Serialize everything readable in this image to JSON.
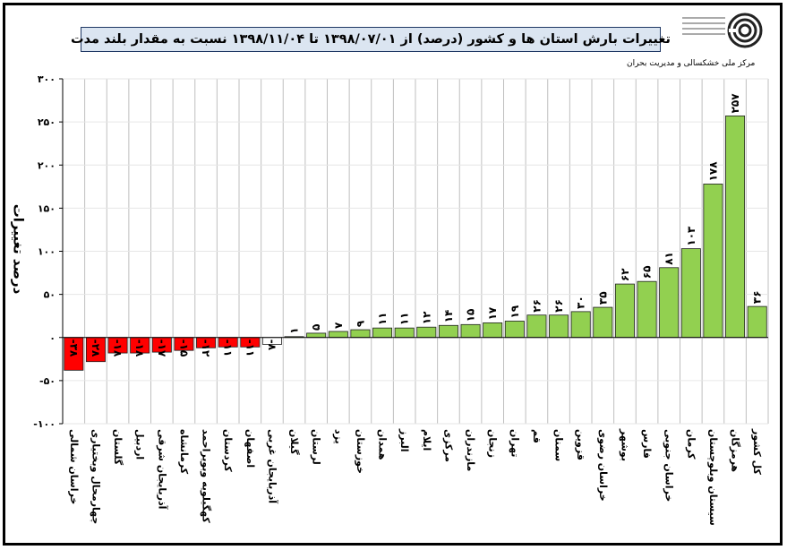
{
  "chart_data": {
    "type": "bar",
    "title": "تغییرات بارش استان ها و کشور (درصد) از ۱۳۹۸/۰۷/۰۱ تا ۱۳۹۸/۱۱/۰۴ نسبت به مقدار بلند مدت",
    "source": "مرکز ملی خشکسالی و مدیریت بحران",
    "ylabel": "درصد تغییرات",
    "xlabel": "",
    "ylim": [
      -100,
      300
    ],
    "yticks": [
      -100,
      -50,
      0,
      50,
      100,
      150,
      200,
      250,
      300
    ],
    "ytick_labels": [
      "-۱۰۰",
      "-۵۰",
      "۰",
      "۵۰",
      "۱۰۰",
      "۱۵۰",
      "۲۰۰",
      "۲۵۰",
      "۳۰۰"
    ],
    "grid": true,
    "categories": [
      "خراسان شمالی",
      "چهارمحال وبختیاری",
      "گلستان",
      "اردبیل",
      "آذربایجان شرقی",
      "کرمانشاه",
      "کهگیلویه وبویراحمد",
      "کردستان",
      "اصفهان",
      "آذربایجان غربی",
      "گیلان",
      "لرستان",
      "یزد",
      "خوزستان",
      "همدان",
      "البرز",
      "ایلام",
      "مرکزی",
      "مازندران",
      "زنجان",
      "تهران",
      "قم",
      "سمنان",
      "قزوین",
      "خراسان رضوی",
      "بوشهر",
      "فارس",
      "خراسان جنوبی",
      "کرمان",
      "سیستان وبلوچستان",
      "هرمزگان",
      "کل کشور"
    ],
    "values": [
      -38,
      -28,
      -18,
      -18,
      -17,
      -15,
      -12,
      -11,
      -11,
      -8,
      1,
      5,
      7,
      9,
      11,
      11,
      12,
      14,
      15,
      17,
      19,
      26,
      26,
      30,
      35,
      62,
      65,
      81,
      103,
      178,
      257,
      36
    ],
    "value_labels": [
      "-۳۸",
      "-۲۸",
      "-۱۸",
      "-۱۸",
      "-۱۷",
      "-۱۵",
      "-۱۲",
      "-۱۱",
      "-۱۱",
      "-۸",
      "۱",
      "۵",
      "۷",
      "۹",
      "۱۱",
      "۱۱",
      "۱۲",
      "۱۴",
      "۱۵",
      "۱۷",
      "۱۹",
      "۲۶",
      "۲۶",
      "۳۰",
      "۳۵",
      "۶۲",
      "۶۵",
      "۸۱",
      "۱۰۳",
      "۱۷۸",
      "۲۵۷",
      "۳۶"
    ],
    "colors": {
      "negative": "#ff0000",
      "positive": "#92d050",
      "near_zero": "#ffffff",
      "title_bg": "#dbe5f1",
      "title_border": "#1f3864",
      "grid": "#bfbfbf"
    }
  }
}
